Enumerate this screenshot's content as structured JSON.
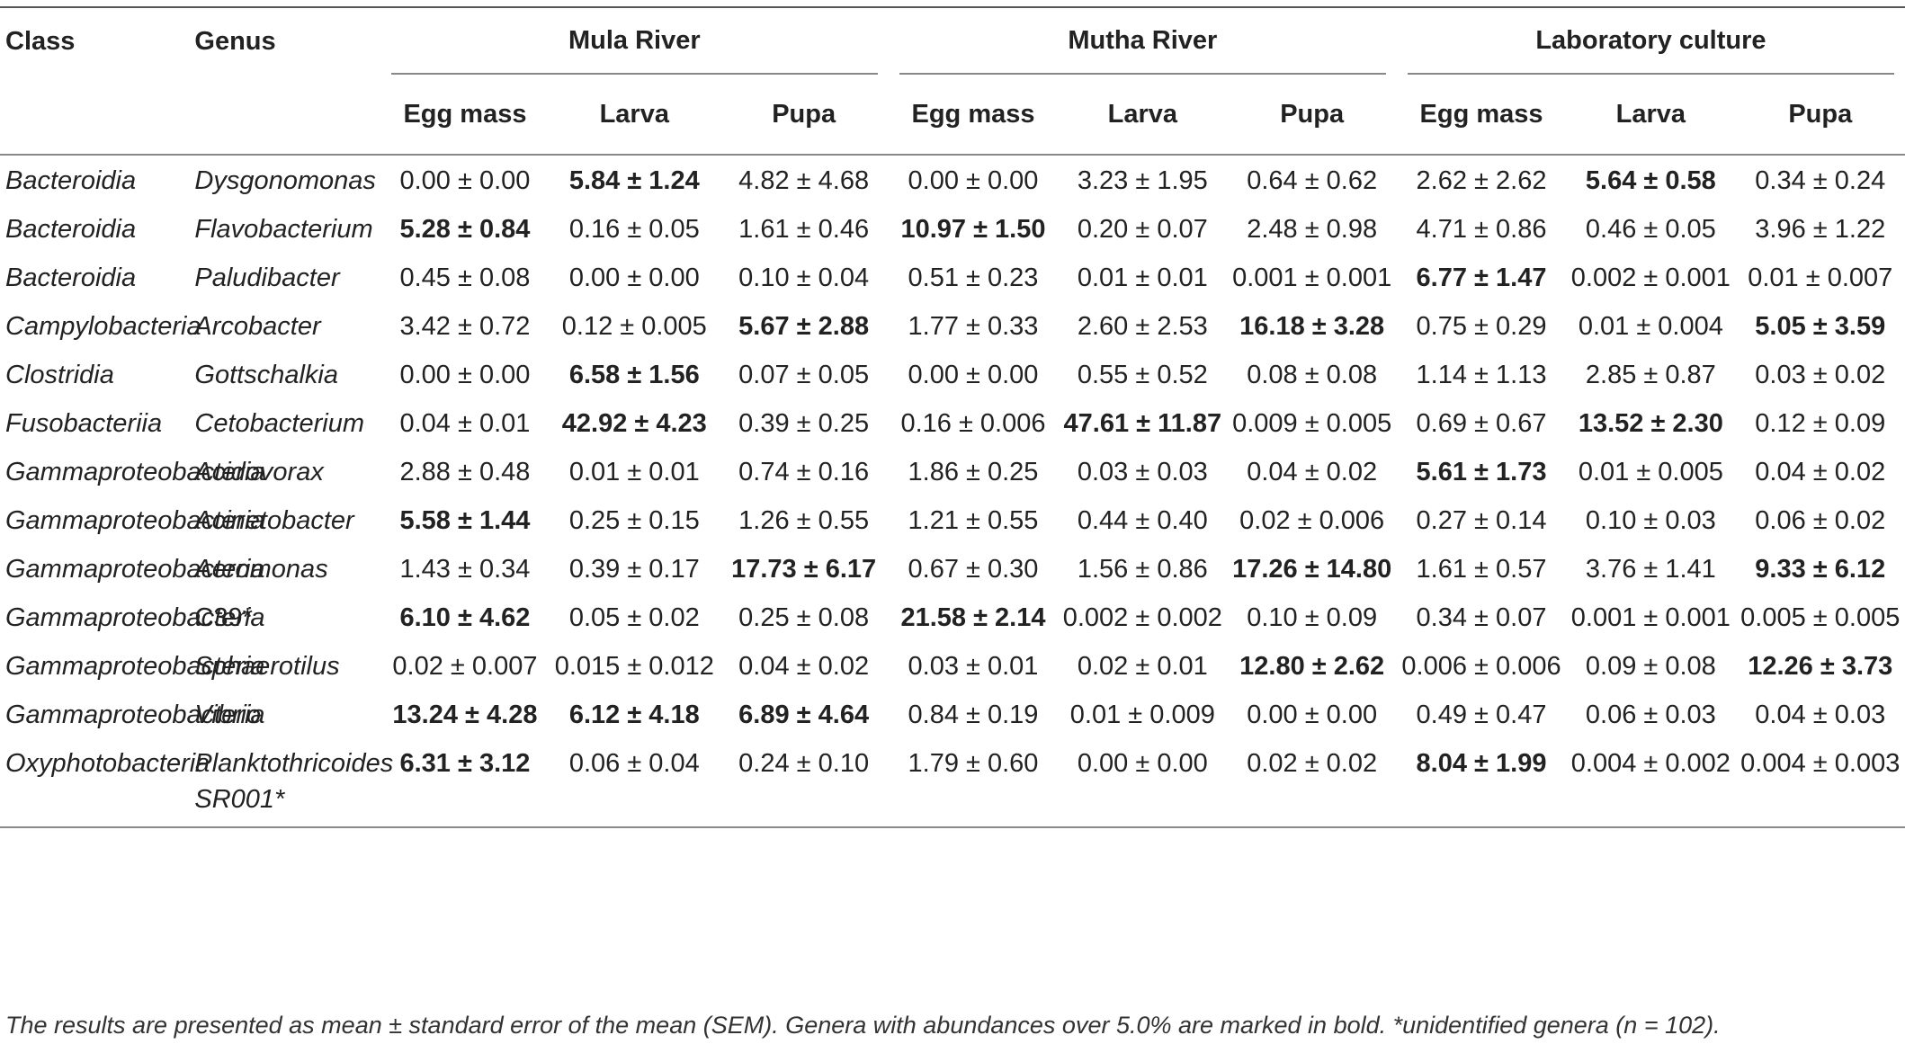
{
  "headers": {
    "class": "Class",
    "genus": "Genus",
    "groups": [
      "Mula River",
      "Mutha River",
      "Laboratory culture"
    ],
    "stages": [
      "Egg mass",
      "Larva",
      "Pupa",
      "Egg mass",
      "Larva",
      "Pupa",
      "Egg mass",
      "Larva",
      "Pupa"
    ]
  },
  "rows": [
    {
      "class": "Bacteroidia",
      "genus": "Dysgonomonas",
      "italic_genus": true,
      "values": [
        "0.00 ± 0.00",
        "5.84 ± 1.24",
        "4.82 ± 4.68",
        "0.00 ± 0.00",
        "3.23 ± 1.95",
        "0.64 ± 0.62",
        "2.62 ± 2.62",
        "5.64 ± 0.58",
        "0.34 ± 0.24"
      ],
      "bold": [
        false,
        true,
        false,
        false,
        false,
        false,
        false,
        true,
        false
      ]
    },
    {
      "class": "Bacteroidia",
      "genus": "Flavobacterium",
      "italic_genus": true,
      "values": [
        "5.28 ± 0.84",
        "0.16 ± 0.05",
        "1.61 ± 0.46",
        "10.97 ± 1.50",
        "0.20 ± 0.07",
        "2.48 ± 0.98",
        "4.71 ± 0.86",
        "0.46 ± 0.05",
        "3.96 ± 1.22"
      ],
      "bold": [
        true,
        false,
        false,
        true,
        false,
        false,
        false,
        false,
        false
      ]
    },
    {
      "class": "Bacteroidia",
      "genus": "Paludibacter",
      "italic_genus": true,
      "values": [
        "0.45 ± 0.08",
        "0.00 ± 0.00",
        "0.10 ± 0.04",
        "0.51 ± 0.23",
        "0.01 ± 0.01",
        "0.001 ± 0.001",
        "6.77 ± 1.47",
        "0.002 ± 0.001",
        "0.01 ± 0.007"
      ],
      "bold": [
        false,
        false,
        false,
        false,
        false,
        false,
        true,
        false,
        false
      ]
    },
    {
      "class": "Campylobacteria",
      "genus": "Arcobacter",
      "italic_genus": true,
      "values": [
        "3.42 ± 0.72",
        "0.12 ± 0.005",
        "5.67 ± 2.88",
        "1.77 ± 0.33",
        "2.60 ± 2.53",
        "16.18 ± 3.28",
        "0.75 ± 0.29",
        "0.01 ± 0.004",
        "5.05 ± 3.59"
      ],
      "bold": [
        false,
        false,
        true,
        false,
        false,
        true,
        false,
        false,
        true
      ]
    },
    {
      "class": "Clostridia",
      "genus": "Gottschalkia",
      "italic_genus": true,
      "values": [
        "0.00 ± 0.00",
        "6.58 ± 1.56",
        "0.07 ± 0.05",
        "0.00 ± 0.00",
        "0.55 ± 0.52",
        "0.08 ± 0.08",
        "1.14 ± 1.13",
        "2.85 ± 0.87",
        "0.03 ± 0.02"
      ],
      "bold": [
        false,
        true,
        false,
        false,
        false,
        false,
        false,
        false,
        false
      ]
    },
    {
      "class": "Fusobacteriia",
      "genus": "Cetobacterium",
      "italic_genus": true,
      "values": [
        "0.04 ± 0.01",
        "42.92 ± 4.23",
        "0.39 ± 0.25",
        "0.16 ± 0.006",
        "47.61 ± 11.87",
        "0.009 ± 0.005",
        "0.69 ± 0.67",
        "13.52 ± 2.30",
        "0.12 ± 0.09"
      ],
      "bold": [
        false,
        true,
        false,
        false,
        true,
        false,
        false,
        true,
        false
      ]
    },
    {
      "class": "Gammaproteobacteria",
      "genus": "Acidovorax",
      "italic_genus": true,
      "values": [
        "2.88 ± 0.48",
        "0.01 ± 0.01",
        "0.74 ± 0.16",
        "1.86 ± 0.25",
        "0.03 ± 0.03",
        "0.04 ± 0.02",
        "5.61 ± 1.73",
        "0.01 ± 0.005",
        "0.04 ± 0.02"
      ],
      "bold": [
        false,
        false,
        false,
        false,
        false,
        false,
        true,
        false,
        false
      ]
    },
    {
      "class": "Gammaproteobacteria",
      "genus": "Acinetobacter",
      "italic_genus": true,
      "values": [
        "5.58 ± 1.44",
        "0.25 ± 0.15",
        "1.26 ± 0.55",
        "1.21 ± 0.55",
        "0.44 ± 0.40",
        "0.02 ± 0.006",
        "0.27 ± 0.14",
        "0.10 ± 0.03",
        "0.06 ± 0.02"
      ],
      "bold": [
        true,
        false,
        false,
        false,
        false,
        false,
        false,
        false,
        false
      ]
    },
    {
      "class": "Gammaproteobacteria",
      "genus": "Aeromonas",
      "italic_genus": true,
      "values": [
        "1.43 ± 0.34",
        "0.39 ± 0.17",
        "17.73 ± 6.17",
        "0.67 ± 0.30",
        "1.56 ± 0.86",
        "17.26 ± 14.80",
        "1.61 ± 0.57",
        "3.76 ± 1.41",
        "9.33 ± 6.12"
      ],
      "bold": [
        false,
        false,
        true,
        false,
        false,
        true,
        false,
        false,
        true
      ]
    },
    {
      "class": "Gammaproteobacteria",
      "genus": "C39*",
      "italic_genus": false,
      "values": [
        "6.10 ± 4.62",
        "0.05 ± 0.02",
        "0.25 ± 0.08",
        "21.58 ± 2.14",
        "0.002 ± 0.002",
        "0.10 ± 0.09",
        "0.34 ± 0.07",
        "0.001 ± 0.001",
        "0.005 ± 0.005"
      ],
      "bold": [
        true,
        false,
        false,
        true,
        false,
        false,
        false,
        false,
        false
      ]
    },
    {
      "class": "Gammaproteobacteria",
      "genus": "Sphaerotilus",
      "italic_genus": true,
      "values": [
        "0.02 ± 0.007",
        "0.015 ± 0.012",
        "0.04 ± 0.02",
        "0.03 ± 0.01",
        "0.02 ± 0.01",
        "12.80 ± 2.62",
        "0.006 ± 0.006",
        "0.09 ± 0.08",
        "12.26 ± 3.73"
      ],
      "bold": [
        false,
        false,
        false,
        false,
        false,
        true,
        false,
        false,
        true
      ]
    },
    {
      "class": "Gammaproteobacteria",
      "genus": "Vibrio",
      "italic_genus": true,
      "values": [
        "13.24 ± 4.28",
        "6.12 ± 4.18",
        "6.89 ± 4.64",
        "0.84 ± 0.19",
        "0.01 ± 0.009",
        "0.00 ± 0.00",
        "0.49 ± 0.47",
        "0.06 ± 0.03",
        "0.04 ± 0.03"
      ],
      "bold": [
        true,
        true,
        true,
        false,
        false,
        false,
        false,
        false,
        false
      ]
    },
    {
      "class": "Oxyphotobacteria",
      "genus": "Planktothricoides SR001*",
      "italic_genus": true,
      "values": [
        "6.31 ± 3.12",
        "0.06 ± 0.04",
        "0.24 ± 0.10",
        "1.79 ± 0.60",
        "0.00 ± 0.00",
        "0.02 ± 0.02",
        "8.04 ± 1.99",
        "0.004 ± 0.002",
        "0.004 ± 0.003"
      ],
      "bold": [
        true,
        false,
        false,
        false,
        false,
        false,
        true,
        false,
        false
      ]
    }
  ],
  "footnote": "The results are presented as mean ± standard error of the mean (SEM). Genera with abundances over 5.0% are marked in bold. *unidentified genera (n = 102)."
}
